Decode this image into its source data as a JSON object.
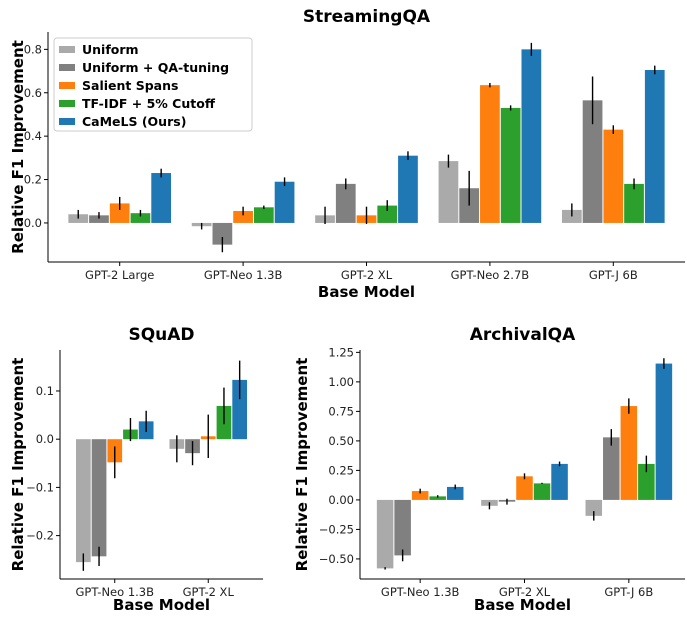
{
  "colors": {
    "Uniform": "#aaaaaa",
    "Uniform + QA-tuning": "#808080",
    "Salient Spans": "#ff7f0e",
    "TF-IDF + 5% Cutoff": "#2ca02c",
    "CaMeLS (Ours)": "#1f77b4"
  },
  "legend": {
    "placement": "top-left",
    "entries": [
      "Uniform",
      "Uniform + QA-tuning",
      "Salient Spans",
      "TF-IDF + 5% Cutoff",
      "CaMeLS (Ours)"
    ]
  },
  "chart_data": [
    {
      "type": "bar",
      "title": "StreamingQA",
      "xlabel": "Base Model",
      "ylabel": "Relative F1 Improvement",
      "ylim": [
        -0.18,
        0.88
      ],
      "yticks": [
        0.0,
        0.2,
        0.4,
        0.6,
        0.8
      ],
      "ytick_labels": [
        "0.0",
        "0.2",
        "0.4",
        "0.6",
        "0.8"
      ],
      "categories": [
        "GPT-2 Large",
        "GPT-Neo 1.3B",
        "GPT-2 XL",
        "GPT-Neo 2.7B",
        "GPT-J 6B"
      ],
      "series": [
        {
          "name": "Uniform",
          "values": [
            0.04,
            -0.015,
            0.035,
            0.285,
            0.06
          ],
          "errors": [
            0.02,
            0.015,
            0.04,
            0.03,
            0.03
          ]
        },
        {
          "name": "Uniform + QA-tuning",
          "values": [
            0.035,
            -0.1,
            0.18,
            0.16,
            0.565
          ],
          "errors": [
            0.015,
            0.035,
            0.025,
            0.08,
            0.11
          ]
        },
        {
          "name": "Salient Spans",
          "values": [
            0.09,
            0.055,
            0.035,
            0.635,
            0.43
          ],
          "errors": [
            0.03,
            0.02,
            0.04,
            0.01,
            0.02
          ]
        },
        {
          "name": "TF-IDF + 5% Cutoff",
          "values": [
            0.045,
            0.072,
            0.08,
            0.53,
            0.18
          ],
          "errors": [
            0.015,
            0.008,
            0.025,
            0.012,
            0.025
          ]
        },
        {
          "name": "CaMeLS (Ours)",
          "values": [
            0.23,
            0.19,
            0.31,
            0.8,
            0.705
          ],
          "errors": [
            0.02,
            0.02,
            0.02,
            0.03,
            0.02
          ]
        }
      ]
    },
    {
      "type": "bar",
      "title": "SQuAD",
      "xlabel": "Base Model",
      "ylabel": "Relative F1 Improvement",
      "ylim": [
        -0.29,
        0.185
      ],
      "yticks": [
        -0.2,
        -0.1,
        0.0,
        0.1
      ],
      "ytick_labels": [
        "−0.2",
        "−0.1",
        "0.0",
        "0.1"
      ],
      "categories": [
        "GPT-Neo 1.3B",
        "GPT-2 XL"
      ],
      "series": [
        {
          "name": "Uniform",
          "values": [
            -0.255,
            -0.02
          ],
          "errors": [
            0.018,
            0.028
          ]
        },
        {
          "name": "Uniform + QA-tuning",
          "values": [
            -0.243,
            -0.029
          ],
          "errors": [
            0.02,
            0.025
          ]
        },
        {
          "name": "Salient Spans",
          "values": [
            -0.048,
            0.006
          ],
          "errors": [
            0.033,
            0.045
          ]
        },
        {
          "name": "TF-IDF + 5% Cutoff",
          "values": [
            0.02,
            0.069
          ],
          "errors": [
            0.024,
            0.038
          ]
        },
        {
          "name": "CaMeLS (Ours)",
          "values": [
            0.037,
            0.123
          ],
          "errors": [
            0.022,
            0.04
          ]
        }
      ]
    },
    {
      "type": "bar",
      "title": "ArchivalQA",
      "xlabel": "Base Model",
      "ylabel": "Relative F1 Improvement",
      "ylim": [
        -0.67,
        1.27
      ],
      "yticks": [
        -0.5,
        -0.25,
        0.0,
        0.25,
        0.5,
        0.75,
        1.0,
        1.25
      ],
      "ytick_labels": [
        "−0.50",
        "−0.25",
        "0.00",
        "0.25",
        "0.50",
        "0.75",
        "1.00",
        "1.25"
      ],
      "categories": [
        "GPT-Neo 1.3B",
        "GPT-2 XL",
        "GPT-J 6B"
      ],
      "series": [
        {
          "name": "Uniform",
          "values": [
            -0.58,
            -0.05,
            -0.135
          ],
          "errors": [
            0.01,
            0.03,
            0.04
          ]
        },
        {
          "name": "Uniform + QA-tuning",
          "values": [
            -0.47,
            -0.015,
            0.53
          ],
          "errors": [
            0.05,
            0.025,
            0.07
          ]
        },
        {
          "name": "Salient Spans",
          "values": [
            0.075,
            0.2,
            0.795
          ],
          "errors": [
            0.02,
            0.025,
            0.065
          ]
        },
        {
          "name": "TF-IDF + 5% Cutoff",
          "values": [
            0.03,
            0.14,
            0.305
          ],
          "errors": [
            0.01,
            0.005,
            0.07
          ]
        },
        {
          "name": "CaMeLS (Ours)",
          "values": [
            0.11,
            0.305,
            1.155
          ],
          "errors": [
            0.02,
            0.02,
            0.045
          ]
        }
      ]
    }
  ]
}
